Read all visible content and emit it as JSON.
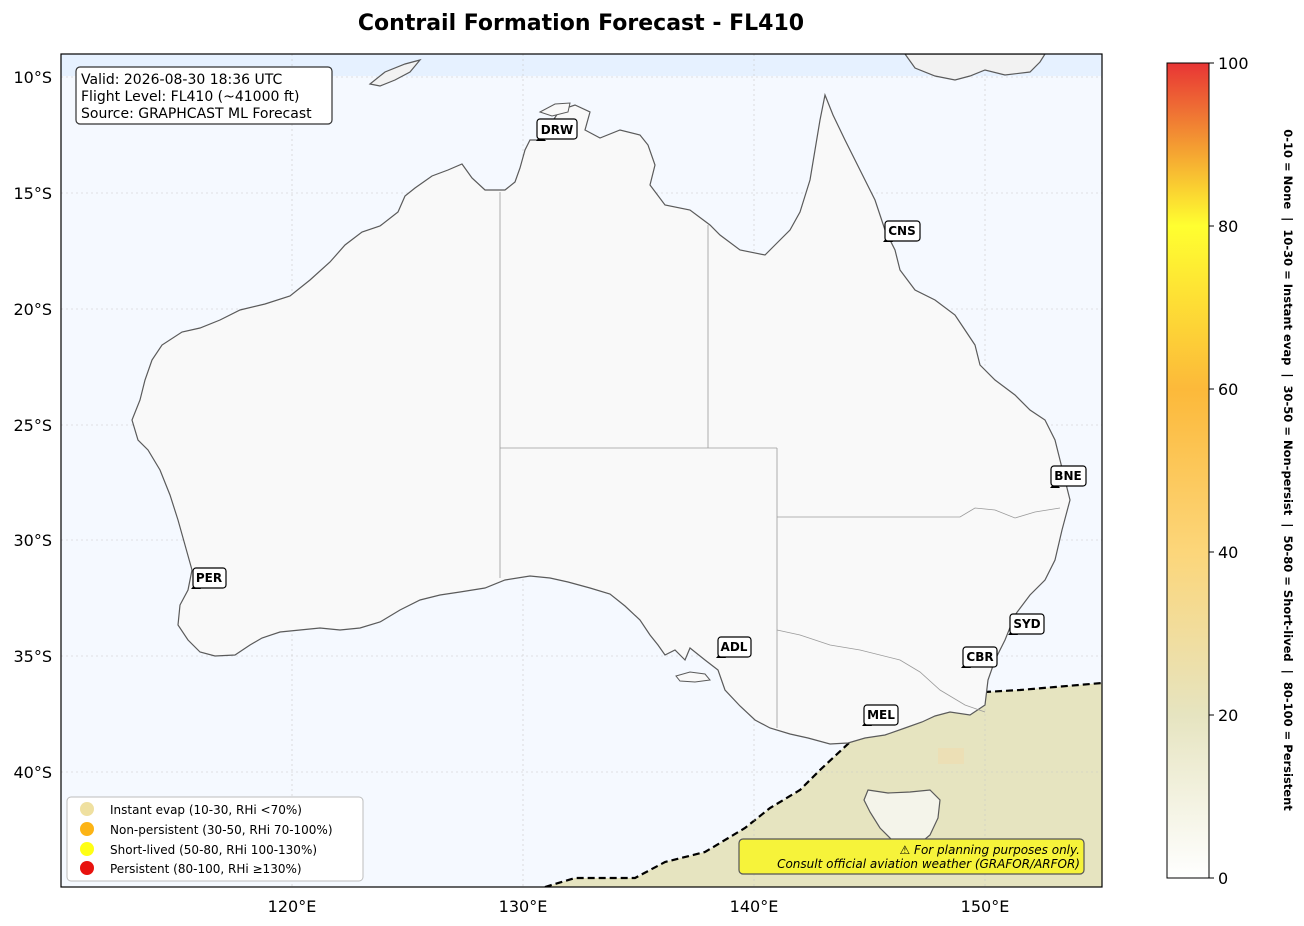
{
  "title": "Contrail Formation Forecast - FL410",
  "info_box": {
    "line1": "Valid: 2026-08-30 18:36 UTC",
    "line2": "Flight Level: FL410 (~41000 ft)",
    "line3": "Source: GRAPHCAST ML Forecast"
  },
  "lat_ticks": [
    "10°S",
    "15°S",
    "20°S",
    "25°S",
    "30°S",
    "35°S",
    "40°S"
  ],
  "lon_ticks": [
    "120°E",
    "130°E",
    "140°E",
    "150°E"
  ],
  "airports": [
    {
      "code": "DRW"
    },
    {
      "code": "CNS"
    },
    {
      "code": "BNE"
    },
    {
      "code": "PER"
    },
    {
      "code": "ADL"
    },
    {
      "code": "SYD"
    },
    {
      "code": "CBR"
    },
    {
      "code": "MEL"
    }
  ],
  "legend": [
    {
      "label": "Instant evap (10-30, RHi <70%)",
      "color": "#efe0a0"
    },
    {
      "label": "Non-persistent (30-50, RHi 70-100%)",
      "color": "#fcb415"
    },
    {
      "label": "Short-lived (50-80, RHi 100-130%)",
      "color": "#ffff14"
    },
    {
      "label": "Persistent (80-100, RHi ≥130%)",
      "color": "#e8120e"
    }
  ],
  "warning": {
    "line1": "⚠ For planning purposes only.",
    "line2": "Consult official aviation weather (GRAFOR/ARFOR)"
  },
  "colorbar": {
    "ticks": [
      "0",
      "20",
      "40",
      "60",
      "80",
      "100"
    ],
    "label": "0-10 = None  |  10-30 = Instant evap  |  30-50 = Non-persist  |  50-80 = Short-lived  |  80-100 = Persistent"
  },
  "colors": {
    "ocean": "#f5f9ff",
    "land": "#f9f9f9",
    "coast": "#5a5a5a",
    "forecast_field": "#e6e4c0",
    "hotspot": "#fcc460",
    "warning_bg": "#f6f33a"
  }
}
